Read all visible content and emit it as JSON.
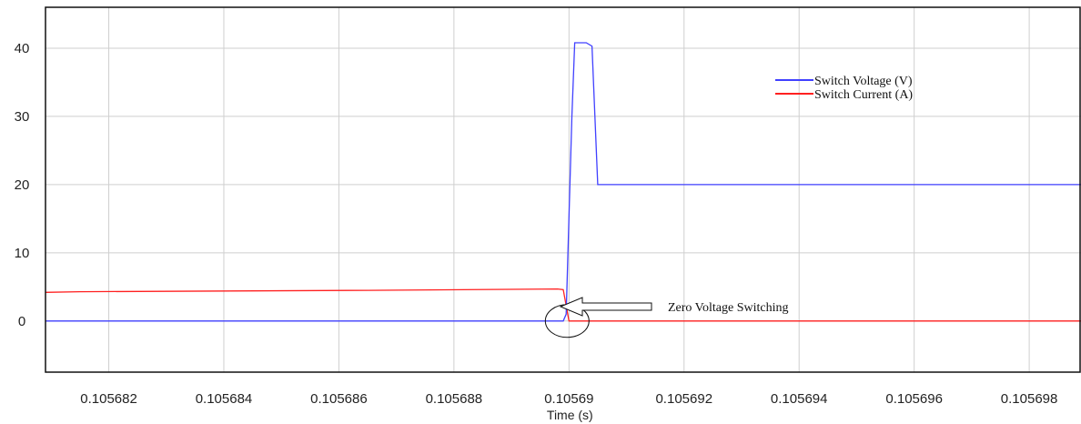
{
  "chart_data": {
    "type": "line",
    "title": "",
    "xlabel": "Time (s)",
    "ylabel": "",
    "xlim": [
      0.1056809,
      0.1056989
    ],
    "ylim": [
      -7.5,
      46
    ],
    "xticks": [
      0.105682,
      0.105684,
      0.105686,
      0.105688,
      0.10569,
      0.105692,
      0.105694,
      0.105696,
      0.105698
    ],
    "xtick_labels": [
      "0.105682",
      "0.105684",
      "0.105686",
      "0.105688",
      "0.10569",
      "0.105692",
      "0.105694",
      "0.105696",
      "0.105698"
    ],
    "yticks": [
      0,
      10,
      20,
      30,
      40
    ],
    "ytick_labels": [
      "0",
      "10",
      "20",
      "30",
      "40"
    ],
    "grid": true,
    "legend_position": "top-right",
    "series": [
      {
        "name": "Switch Voltage (V)",
        "color": "#4040ff",
        "x": [
          0.1056809,
          0.1056899,
          0.10568995,
          0.10569005,
          0.1056901,
          0.1056903,
          0.1056904,
          0.1056905,
          0.1056989
        ],
        "y": [
          0,
          0,
          1,
          30,
          40.8,
          40.8,
          40.3,
          20,
          20
        ]
      },
      {
        "name": "Switch Current (A)",
        "color": "#ff2020",
        "x": [
          0.1056809,
          0.1056815,
          0.1056865,
          0.1056898,
          0.1056899,
          0.10569,
          0.1056989
        ],
        "y": [
          4.2,
          4.3,
          4.5,
          4.7,
          4.6,
          0,
          0
        ]
      }
    ],
    "annotations": [
      {
        "text": "Zero Voltage Switching",
        "x": 0.10569,
        "y": 0
      }
    ]
  }
}
